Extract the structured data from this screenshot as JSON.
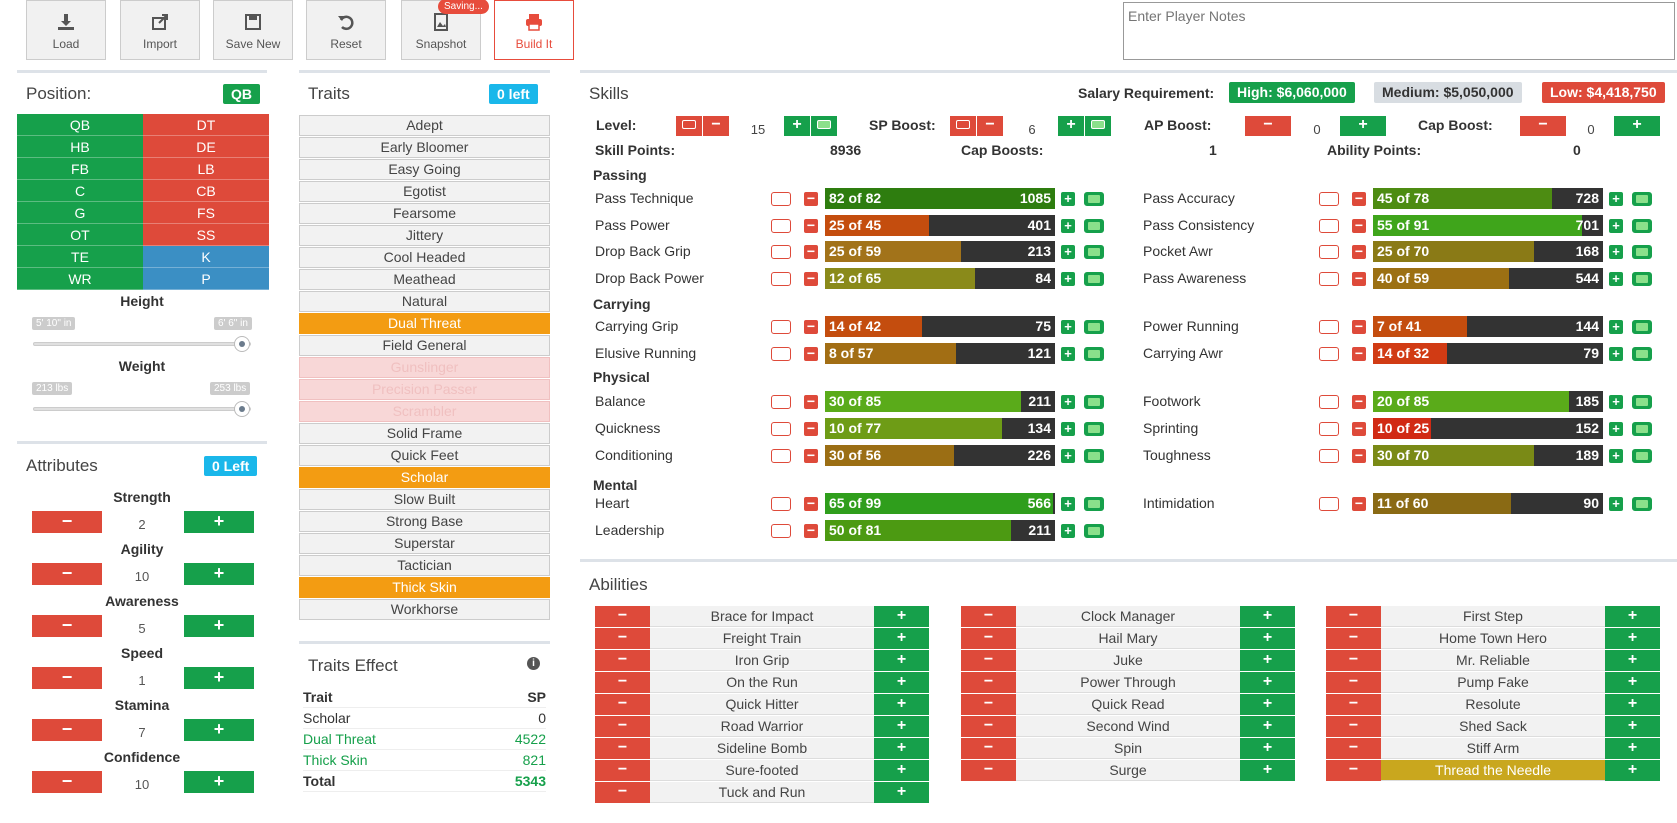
{
  "toolbar": {
    "load": "Load",
    "import": "Import",
    "save_new": "Save New",
    "reset": "Reset",
    "snapshot": "Snapshot",
    "saving_badge": "Saving...",
    "build_it": "Build It",
    "notes_placeholder": "Enter Player Notes"
  },
  "position": {
    "title": "Position:",
    "selected": "QB",
    "left": [
      "QB",
      "HB",
      "FB",
      "C",
      "G",
      "OT",
      "TE",
      "WR"
    ],
    "right": [
      "DT",
      "DE",
      "LB",
      "CB",
      "FS",
      "SS",
      "K",
      "P"
    ],
    "height_label": "Height",
    "height_min": "5' 10\" in",
    "height_max": "6' 6\" in",
    "weight_label": "Weight",
    "weight_min": "213 lbs",
    "weight_max": "253 lbs"
  },
  "attributes": {
    "title": "Attributes",
    "left_badge": "0 Left",
    "items": [
      {
        "label": "Strength",
        "value": "2"
      },
      {
        "label": "Agility",
        "value": "10"
      },
      {
        "label": "Awareness",
        "value": "5"
      },
      {
        "label": "Speed",
        "value": "1"
      },
      {
        "label": "Stamina",
        "value": "7"
      },
      {
        "label": "Confidence",
        "value": "10"
      }
    ],
    "minus": "−",
    "plus": "+"
  },
  "traits": {
    "title": "Traits",
    "left_badge": "0 left",
    "items": [
      "Adept",
      "Early Bloomer",
      "Easy Going",
      "Egotist",
      "Fearsome",
      "Jittery",
      "Cool Headed",
      "Meathead",
      "Natural",
      "Dual Threat",
      "Field General",
      "Gunslinger",
      "Precision Passer",
      "Scrambler",
      "Solid Frame",
      "Quick Feet",
      "Scholar",
      "Slow Built",
      "Strong Base",
      "Superstar",
      "Tactician",
      "Thick Skin",
      "Workhorse"
    ]
  },
  "traits_effect": {
    "title": "Traits Effect",
    "info_icon": "info-icon",
    "header": {
      "trait": "Trait",
      "sp": "SP"
    },
    "rows": [
      {
        "trait": "Scholar",
        "sp": "0"
      },
      {
        "trait": "Dual Threat",
        "sp": "4522"
      },
      {
        "trait": "Thick Skin",
        "sp": "821"
      }
    ],
    "total": {
      "trait": "Total",
      "sp": "5343"
    }
  },
  "skills": {
    "title": "Skills",
    "salary_label": "Salary Requirement:",
    "high": "High: $6,060,000",
    "medium": "Medium: $5,050,000",
    "low": "Low: $4,418,750",
    "level_label": "Level:",
    "level": "15",
    "sp_boost_label": "SP Boost:",
    "sp_boost": "6",
    "ap_boost_label": "AP Boost:",
    "ap_boost": "0",
    "cap_boost_label": "Cap Boost:",
    "cap_boost": "0",
    "skill_points_label": "Skill Points:",
    "skill_points": "8936",
    "cap_boosts_label": "Cap Boosts:",
    "cap_boosts": "1",
    "ability_points_label": "Ability Points:",
    "ability_points": "0",
    "categories": {
      "passing": "Passing",
      "carrying": "Carrying",
      "physical": "Physical",
      "mental": "Mental"
    },
    "left": [
      {
        "name": "Pass Technique",
        "label": "82 of 82",
        "points": "1085",
        "fill": 1.0,
        "color": "#2e7d0f"
      },
      {
        "name": "Pass Power",
        "label": "25 of 45",
        "points": "401",
        "fill": 0.45,
        "color": "#c44d0e"
      },
      {
        "name": "Drop Back Grip",
        "label": "25 of 59",
        "points": "213",
        "fill": 0.59,
        "color": "#a2731a"
      },
      {
        "name": "Drop Back Power",
        "label": "12 of 65",
        "points": "84",
        "fill": 0.65,
        "color": "#8a8a1a"
      },
      {
        "name": "Carrying Grip",
        "label": "14 of 42",
        "points": "75",
        "fill": 0.42,
        "color": "#c44d0e"
      },
      {
        "name": "Elusive Running",
        "label": "8 of 57",
        "points": "121",
        "fill": 0.57,
        "color": "#a26e14"
      },
      {
        "name": "Balance",
        "label": "30 of 85",
        "points": "211",
        "fill": 0.85,
        "color": "#5aab1a"
      },
      {
        "name": "Quickness",
        "label": "10 of 77",
        "points": "134",
        "fill": 0.77,
        "color": "#6e9c16"
      },
      {
        "name": "Conditioning",
        "label": "30 of 56",
        "points": "226",
        "fill": 0.56,
        "color": "#9b6e14"
      },
      {
        "name": "Heart",
        "label": "65 of 99",
        "points": "566",
        "fill": 0.99,
        "color": "#2f9e1c"
      },
      {
        "name": "Leadership",
        "label": "50 of 81",
        "points": "211",
        "fill": 0.81,
        "color": "#4c9a12"
      }
    ],
    "right": [
      {
        "name": "Pass Accuracy",
        "label": "45 of 78",
        "points": "728",
        "fill": 0.78,
        "color": "#4d8c12"
      },
      {
        "name": "Pass Consistency",
        "label": "55 of 91",
        "points": "701",
        "fill": 0.91,
        "color": "#3fa51b"
      },
      {
        "name": "Pocket Awr",
        "label": "25 of 70",
        "points": "168",
        "fill": 0.7,
        "color": "#8a7a16"
      },
      {
        "name": "Pass Awareness",
        "label": "40 of 59",
        "points": "544",
        "fill": 0.59,
        "color": "#9c7013"
      },
      {
        "name": "Power Running",
        "label": "7 of 41",
        "points": "144",
        "fill": 0.41,
        "color": "#c44d0e"
      },
      {
        "name": "Carrying Awr",
        "label": "14 of 32",
        "points": "79",
        "fill": 0.32,
        "color": "#d13b14"
      },
      {
        "name": "Footwork",
        "label": "20 of 85",
        "points": "185",
        "fill": 0.85,
        "color": "#5aab1a"
      },
      {
        "name": "Sprinting",
        "label": "10 of 25",
        "points": "152",
        "fill": 0.25,
        "color": "#d12a14"
      },
      {
        "name": "Toughness",
        "label": "30 of 70",
        "points": "189",
        "fill": 0.7,
        "color": "#7a8a16"
      },
      {
        "name": "Intimidation",
        "label": "11 of 60",
        "points": "90",
        "fill": 0.6,
        "color": "#8a6a14"
      }
    ]
  },
  "abilities": {
    "title": "Abilities",
    "col1": [
      "Brace for Impact",
      "Freight Train",
      "Iron Grip",
      "On the Run",
      "Quick Hitter",
      "Road Warrior",
      "Sideline Bomb",
      "Sure-footed",
      "Tuck and Run"
    ],
    "col2": [
      "Clock Manager",
      "Hail Mary",
      "Juke",
      "Power Through",
      "Quick Read",
      "Second Wind",
      "Spin",
      "Surge"
    ],
    "col3": [
      "First Step",
      "Home Town Hero",
      "Mr. Reliable",
      "Pump Fake",
      "Resolute",
      "Shed Sack",
      "Stiff Arm",
      "Thread the Needle"
    ],
    "selected": "Thread the Needle",
    "minus": "−",
    "plus": "+"
  }
}
